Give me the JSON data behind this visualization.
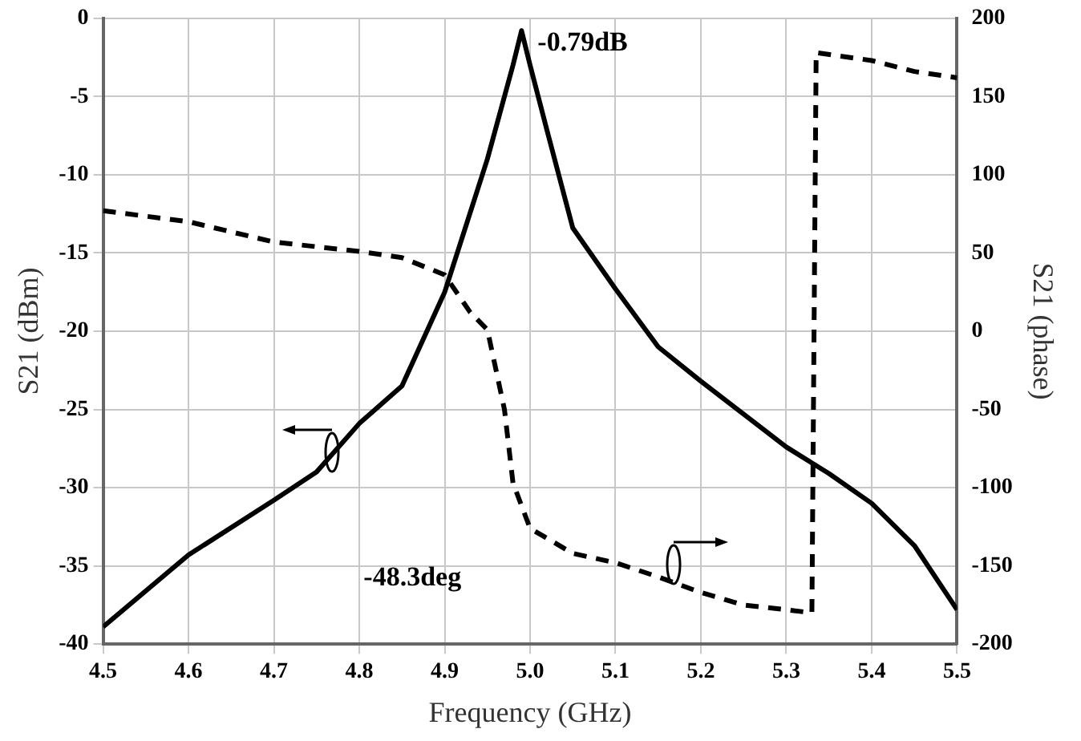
{
  "chart_data": {
    "type": "line",
    "xlabel": "Frequency (GHz)",
    "ylabel": "S21 (dBm)",
    "y2label": "S21 (phase)",
    "xlim": [
      4.5,
      5.5
    ],
    "xticks": [
      4.5,
      4.6,
      4.7,
      4.8,
      4.9,
      {
        "value": 5,
        "label": "5.0"
      },
      5.1,
      5.2,
      5.3,
      5.4,
      5.5
    ],
    "ylim": [
      -40,
      0
    ],
    "yticks": [
      -40,
      -35,
      -30,
      -25,
      -20,
      -15,
      -10,
      -5,
      0
    ],
    "y2lim": [
      -200,
      200
    ],
    "y2ticks": [
      -200,
      -150,
      -100,
      -50,
      0,
      50,
      100,
      150,
      200
    ],
    "grid": true,
    "legend": false,
    "marker": "none",
    "series": [
      {
        "color": "#000000",
        "line_style": "solid",
        "x": [
          4.5,
          4.6,
          4.7,
          4.75,
          4.8,
          4.85,
          4.9,
          4.95,
          4.98,
          4.99,
          5.0,
          5.02,
          5.05,
          5.1,
          5.15,
          5.2,
          5.25,
          5.3,
          5.35,
          5.4,
          5.45,
          5.5
        ],
        "values": [
          -38.9,
          -34.3,
          -30.8,
          -29,
          -25.9,
          -23.5,
          -17.5,
          -9,
          -3,
          -0.79,
          -3,
          -7.2,
          -13.4,
          -17.3,
          -21,
          -23.2,
          -25.3,
          -27.4,
          -29.1,
          -31,
          -33.7,
          -37.8
        ]
      },
      {
        "color": "#000000",
        "line_style": "dashed",
        "axis": "y2",
        "x": [
          4.5,
          4.6,
          4.7,
          4.8,
          4.85,
          4.9,
          4.93,
          4.95,
          4.97,
          4.98,
          5.0,
          5.05,
          5.1,
          5.15,
          5.2,
          5.25,
          5.3,
          5.33,
          5.335,
          5.4,
          5.45,
          5.5
        ],
        "values": [
          77,
          70,
          57,
          51,
          47,
          36,
          12,
          1,
          -50,
          -97,
          -126,
          -142,
          -148,
          -157,
          -167,
          -175,
          -178,
          -180,
          178,
          173,
          166,
          162
        ]
      }
    ],
    "annotations": [
      {
        "text": "-0.79dB",
        "x": 4.99,
        "y": -0.79
      },
      "-48.3deg"
    ]
  }
}
